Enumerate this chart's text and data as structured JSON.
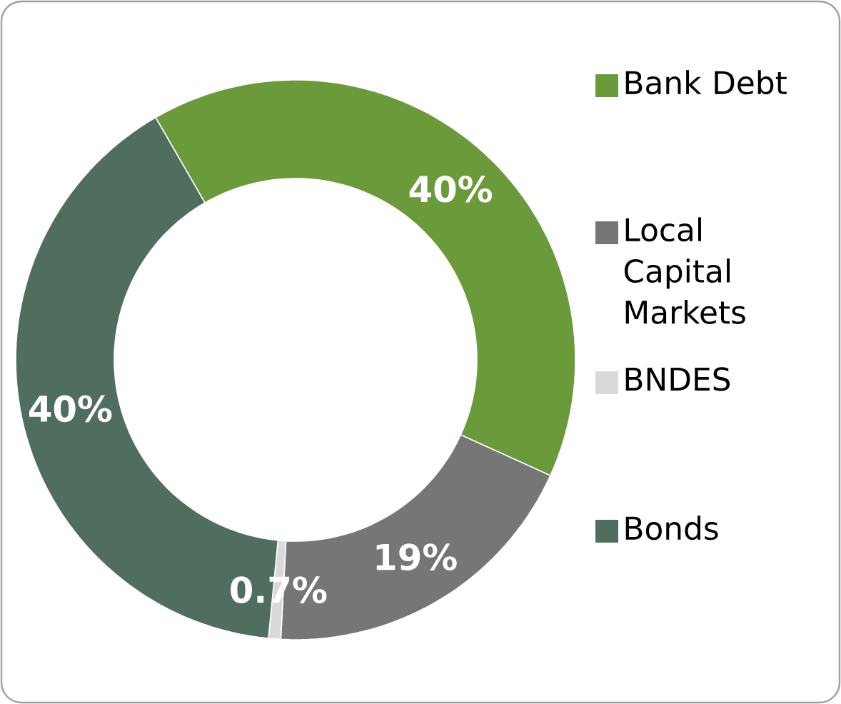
{
  "chart_data": {
    "type": "donut",
    "categories": [
      "Bank Debt",
      "Local Capital Markets",
      "BNDES",
      "Bonds"
    ],
    "values": [
      40,
      19,
      0.7,
      40
    ],
    "colors": [
      "#6b9a3b",
      "#767676",
      "#d9d9d9",
      "#4f6e5f"
    ],
    "value_labels": [
      "40%",
      "19%",
      "0.7%",
      "40%"
    ],
    "legend": "right"
  }
}
